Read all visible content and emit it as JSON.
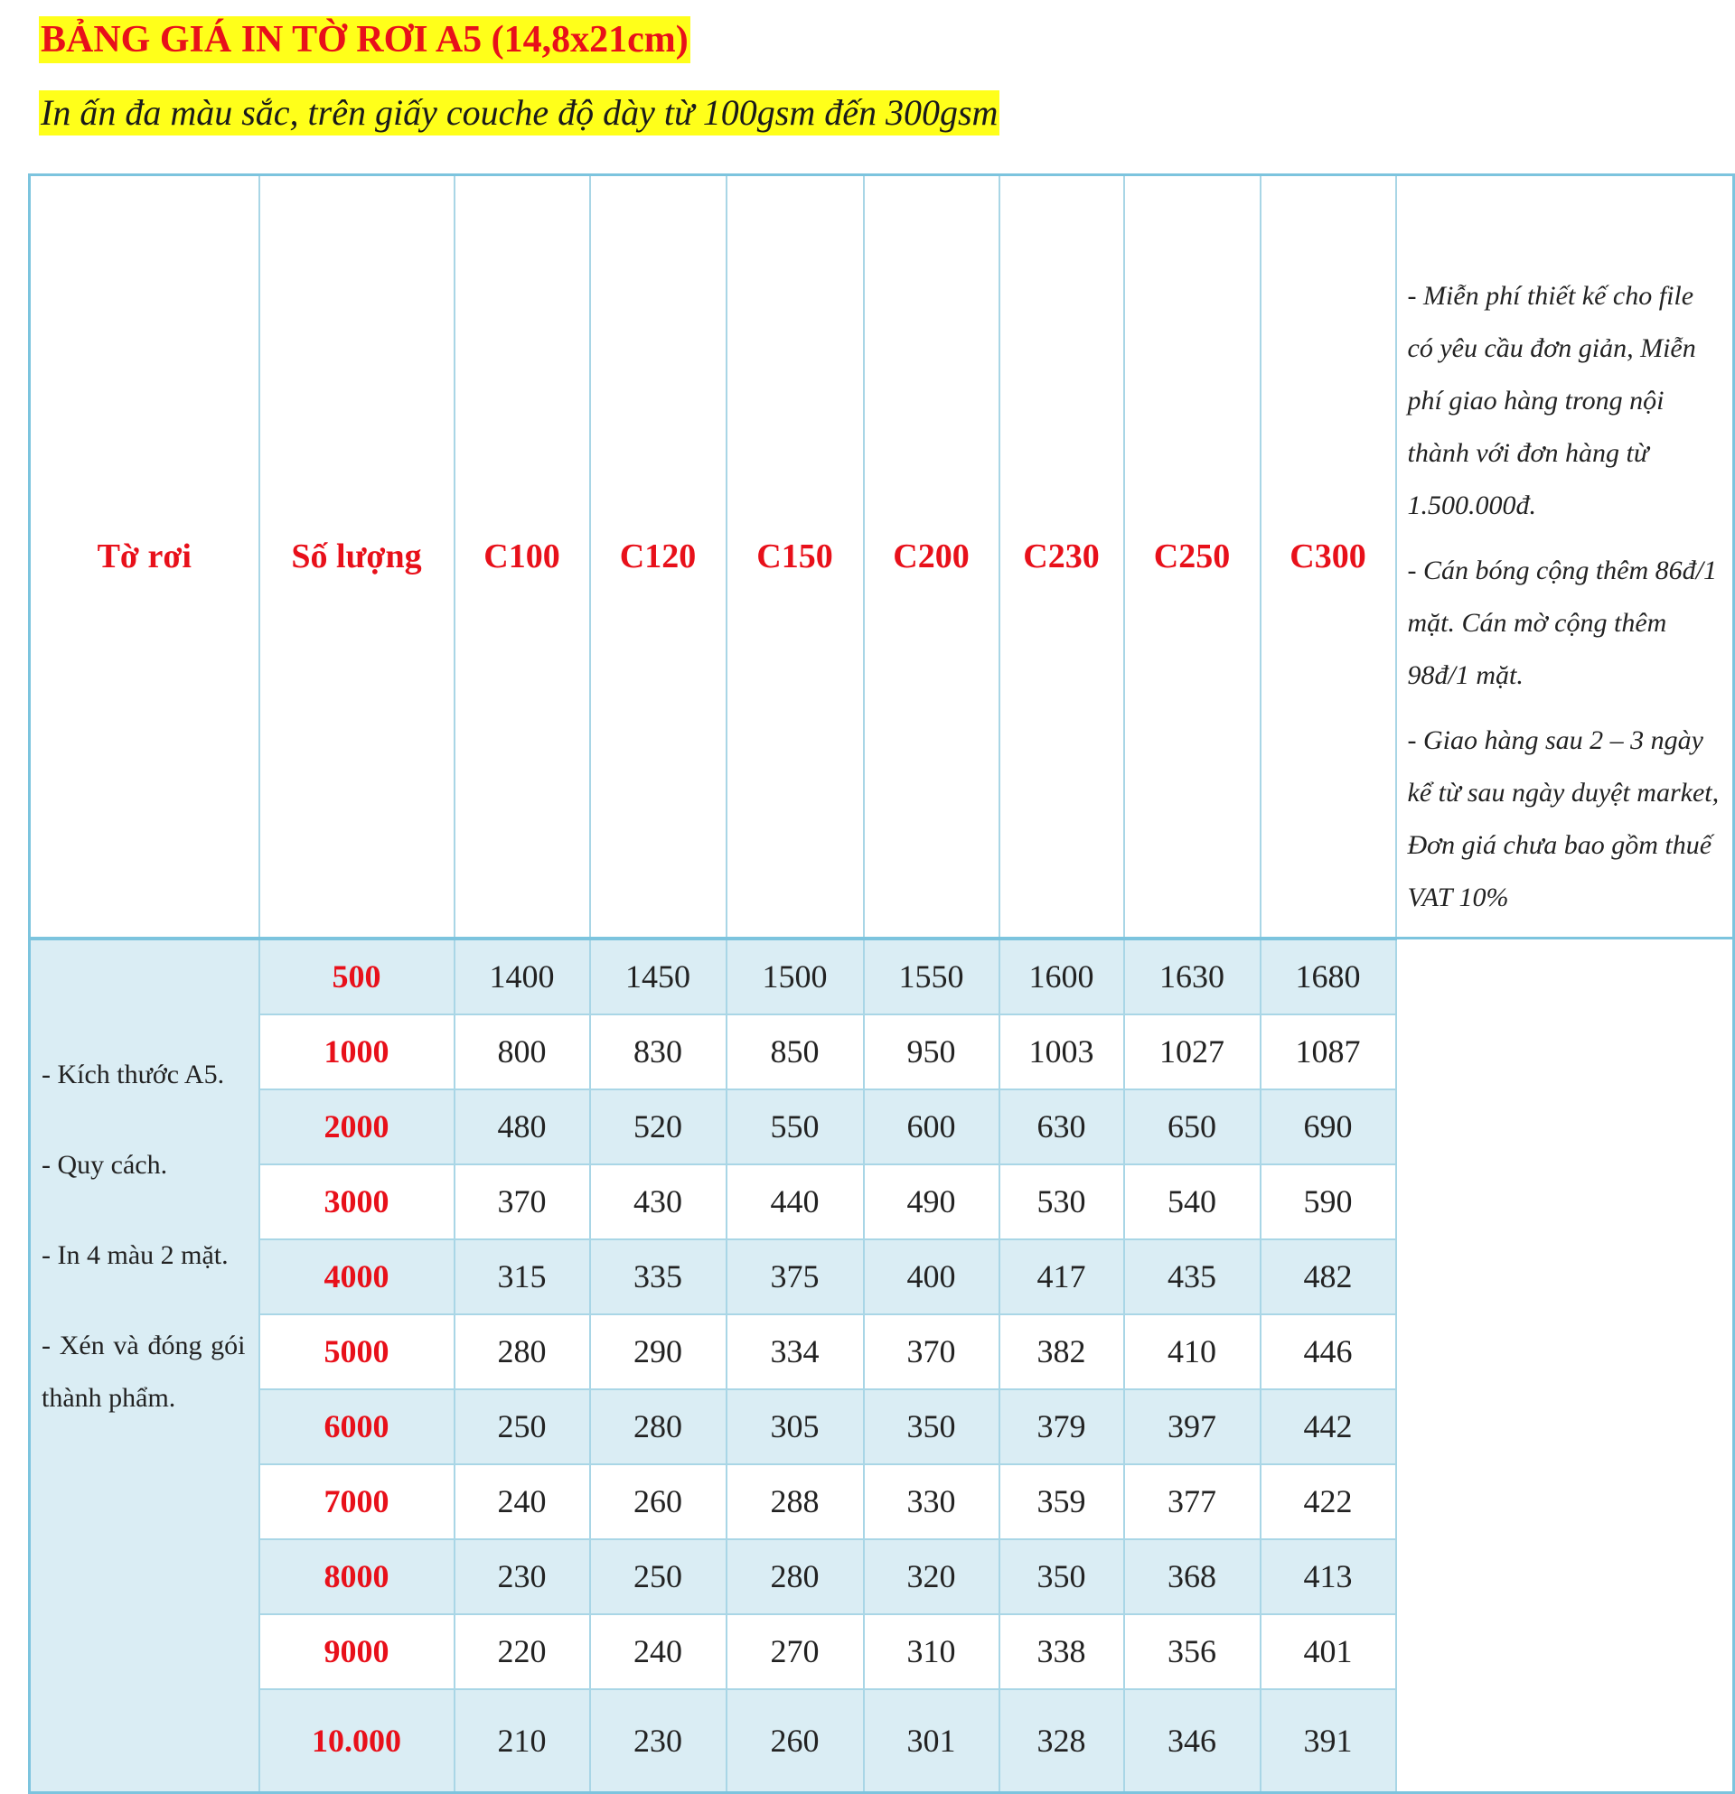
{
  "header": {
    "title": "BẢNG GIÁ IN TỜ RƠI A5 (14,8x21cm)",
    "subtitle": "In ấn đa màu sắc, trên giấy couche độ dày từ 100gsm đến 300gsm"
  },
  "table": {
    "columns": [
      "Tờ rơi",
      "Số lượng",
      "C100",
      "C120",
      "C150",
      "C200",
      "C230",
      "C250",
      "C300"
    ],
    "rows": [
      [
        "500",
        "1400",
        "1450",
        "1500",
        "1550",
        "1600",
        "1630",
        "1680"
      ],
      [
        "1000",
        "800",
        "830",
        "850",
        "950",
        "1003",
        "1027",
        "1087"
      ],
      [
        "2000",
        "480",
        "520",
        "550",
        "600",
        "630",
        "650",
        "690"
      ],
      [
        "3000",
        "370",
        "430",
        "440",
        "490",
        "530",
        "540",
        "590"
      ],
      [
        "4000",
        "315",
        "335",
        "375",
        "400",
        "417",
        "435",
        "482"
      ],
      [
        "5000",
        "280",
        "290",
        "334",
        "370",
        "382",
        "410",
        "446"
      ],
      [
        "6000",
        "250",
        "280",
        "305",
        "350",
        "379",
        "397",
        "442"
      ],
      [
        "7000",
        "240",
        "260",
        "288",
        "330",
        "359",
        "377",
        "422"
      ],
      [
        "8000",
        "230",
        "250",
        "280",
        "320",
        "350",
        "368",
        "413"
      ],
      [
        "9000",
        "220",
        "240",
        "270",
        "310",
        "338",
        "356",
        "401"
      ],
      [
        "10.000",
        "210",
        "230",
        "260",
        "301",
        "328",
        "346",
        "391"
      ]
    ],
    "left_notes": [
      "- Kích thước A5.",
      "- Quy cách.",
      "- In 4 màu 2 mặt.",
      "- Xén và đóng gói thành phẩm."
    ],
    "right_notes": [
      "- Miễn phí thiết kế cho file có yêu cầu đơn giản, Miễn phí giao hàng trong nội thành với đơn hàng từ 1.500.000đ.",
      "- Cán bóng cộng thêm 86đ/1 mặt. Cán mờ cộng thêm 98đ/1 mặt.",
      "- Giao hàng sau 2 – 3 ngày kể từ sau ngày duyệt market, Đơn giá chưa bao gồm thuế VAT 10%"
    ]
  }
}
